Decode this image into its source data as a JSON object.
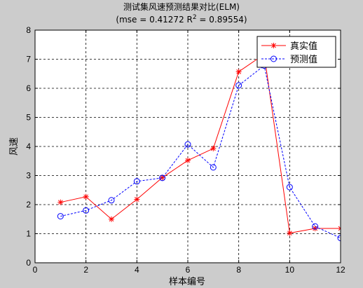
{
  "chart_data": {
    "type": "line",
    "title": "测试集风速预测结果对比(ELM)",
    "subtitle_prefix": "(mse = 0.41272 R",
    "subtitle_sup": "2",
    "subtitle_suffix": " = 0.89554)",
    "xlabel": "样本编号",
    "ylabel": "风速",
    "xlim": [
      0,
      12
    ],
    "ylim": [
      0,
      8
    ],
    "xticks": [
      0,
      2,
      4,
      6,
      8,
      10,
      12
    ],
    "yticks": [
      0,
      1,
      2,
      3,
      4,
      5,
      6,
      7,
      8
    ],
    "grid": true,
    "legend_position": "top-right",
    "x": [
      1,
      2,
      3,
      4,
      5,
      6,
      7,
      8,
      9,
      10,
      11,
      12
    ],
    "series": [
      {
        "name": "真实值",
        "color": "#ff0000",
        "marker": "star",
        "line": "solid",
        "values": [
          2.08,
          2.27,
          1.5,
          2.18,
          2.93,
          3.52,
          3.93,
          6.57,
          7.17,
          1.02,
          1.18,
          1.18
        ]
      },
      {
        "name": "预测值",
        "color": "#0000ff",
        "marker": "circle",
        "line": "dashed",
        "values": [
          1.6,
          1.8,
          2.15,
          2.8,
          2.92,
          4.07,
          3.28,
          6.1,
          6.78,
          2.6,
          1.25,
          0.85
        ]
      }
    ]
  }
}
